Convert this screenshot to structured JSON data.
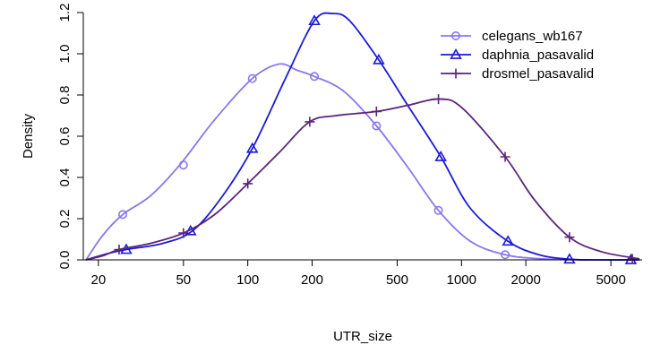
{
  "chart_data": {
    "type": "line",
    "title": "",
    "xlabel": "UTR_size",
    "ylabel": "Density",
    "x_scale": "log",
    "xlim": [
      17,
      7000
    ],
    "ylim": [
      0,
      1.2
    ],
    "x_ticks": [
      20,
      50,
      100,
      200,
      500,
      1000,
      2000,
      5000
    ],
    "y_ticks": [
      0.0,
      0.2,
      0.4,
      0.6,
      0.8,
      1.0,
      1.2
    ],
    "y_tick_labels": [
      "0.0",
      "0.2",
      "0.4",
      "0.6",
      "0.8",
      "1.0",
      "1.2"
    ],
    "grid": false,
    "legend_position": "top-right",
    "series": [
      {
        "name": "celegans_wb167",
        "color": "#8877ee",
        "marker": "circle",
        "points": [
          [
            17.5,
            0.0
          ],
          [
            21,
            0.12
          ],
          [
            26,
            0.22
          ],
          [
            35,
            0.31
          ],
          [
            48,
            0.46
          ],
          [
            70,
            0.68
          ],
          [
            105,
            0.88
          ],
          [
            140,
            0.95
          ],
          [
            170,
            0.92
          ],
          [
            205,
            0.89
          ],
          [
            280,
            0.82
          ],
          [
            400,
            0.65
          ],
          [
            560,
            0.45
          ],
          [
            780,
            0.24
          ],
          [
            1100,
            0.09
          ],
          [
            1600,
            0.025
          ],
          [
            2400,
            0.005
          ],
          [
            4000,
            0.0
          ],
          [
            6800,
            0.0
          ]
        ],
        "markers": [
          [
            26,
            0.22
          ],
          [
            50,
            0.46
          ],
          [
            105,
            0.88
          ],
          [
            205,
            0.89
          ],
          [
            400,
            0.65
          ],
          [
            780,
            0.24
          ],
          [
            1600,
            0.025
          ]
        ]
      },
      {
        "name": "daphnia_pasavalid",
        "color": "#1a1ad8",
        "marker": "triangle",
        "points": [
          [
            17.5,
            0.0
          ],
          [
            22,
            0.03
          ],
          [
            27,
            0.05
          ],
          [
            40,
            0.08
          ],
          [
            55,
            0.14
          ],
          [
            75,
            0.3
          ],
          [
            105,
            0.54
          ],
          [
            150,
            0.88
          ],
          [
            205,
            1.16
          ],
          [
            250,
            1.195
          ],
          [
            300,
            1.16
          ],
          [
            410,
            0.97
          ],
          [
            560,
            0.75
          ],
          [
            800,
            0.5
          ],
          [
            1100,
            0.25
          ],
          [
            1650,
            0.09
          ],
          [
            2300,
            0.025
          ],
          [
            3200,
            0.003
          ],
          [
            4500,
            0.0
          ],
          [
            6800,
            0.0
          ]
        ],
        "markers": [
          [
            27,
            0.05
          ],
          [
            54,
            0.14
          ],
          [
            105,
            0.54
          ],
          [
            205,
            1.16
          ],
          [
            410,
            0.97
          ],
          [
            800,
            0.5
          ],
          [
            1650,
            0.09
          ],
          [
            3200,
            0.003
          ],
          [
            6200,
            0.0
          ]
        ]
      },
      {
        "name": "drosmel_pasavalid",
        "color": "#5a2478",
        "marker": "plus",
        "points": [
          [
            17.5,
            0.0
          ],
          [
            21,
            0.02
          ],
          [
            25,
            0.05
          ],
          [
            35,
            0.08
          ],
          [
            50,
            0.13
          ],
          [
            70,
            0.22
          ],
          [
            100,
            0.37
          ],
          [
            140,
            0.52
          ],
          [
            195,
            0.67
          ],
          [
            260,
            0.7
          ],
          [
            400,
            0.72
          ],
          [
            560,
            0.75
          ],
          [
            780,
            0.78
          ],
          [
            1000,
            0.74
          ],
          [
            1600,
            0.5
          ],
          [
            2200,
            0.29
          ],
          [
            3200,
            0.11
          ],
          [
            4500,
            0.04
          ],
          [
            6800,
            0.005
          ]
        ],
        "markers": [
          [
            25,
            0.05
          ],
          [
            50,
            0.13
          ],
          [
            100,
            0.37
          ],
          [
            195,
            0.67
          ],
          [
            400,
            0.72
          ],
          [
            780,
            0.78
          ],
          [
            1600,
            0.5
          ],
          [
            3200,
            0.11
          ],
          [
            6300,
            0.005
          ]
        ]
      }
    ]
  }
}
